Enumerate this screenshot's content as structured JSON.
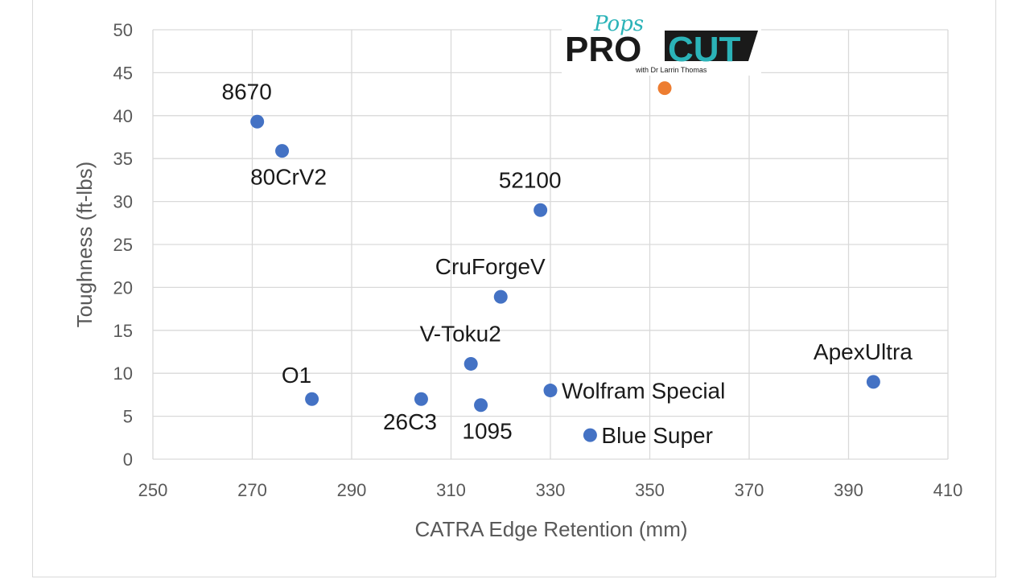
{
  "chart_data": {
    "type": "scatter",
    "title": "",
    "xlabel": "CATRA Edge Retention (mm)",
    "ylabel": "Toughness (ft-lbs)",
    "xlim": [
      250,
      410
    ],
    "ylim": [
      0,
      50
    ],
    "xticks": [
      250,
      270,
      290,
      310,
      330,
      350,
      370,
      390,
      410
    ],
    "yticks": [
      0,
      5,
      10,
      15,
      20,
      25,
      30,
      35,
      40,
      45,
      50
    ],
    "grid": true,
    "series": [
      {
        "color": "#4472c4",
        "points": [
          {
            "label": "8670",
            "x": 271,
            "y": 39.3,
            "label_pos": "above"
          },
          {
            "label": "80CrV2",
            "x": 276,
            "y": 35.9,
            "label_pos": "below"
          },
          {
            "label": "52100",
            "x": 328,
            "y": 29.0,
            "label_pos": "above"
          },
          {
            "label": "CruForgeV",
            "x": 320,
            "y": 18.9,
            "label_pos": "above"
          },
          {
            "label": "V-Toku2",
            "x": 314,
            "y": 11.1,
            "label_pos": "above"
          },
          {
            "label": "O1",
            "x": 282,
            "y": 7.0,
            "label_pos": "above-left"
          },
          {
            "label": "26C3",
            "x": 304,
            "y": 7.0,
            "label_pos": "below-left"
          },
          {
            "label": "1095",
            "x": 316,
            "y": 6.3,
            "label_pos": "below"
          },
          {
            "label": "Wolfram Special",
            "x": 330,
            "y": 8.0,
            "label_pos": "right"
          },
          {
            "label": "Blue Super",
            "x": 338,
            "y": 2.8,
            "label_pos": "right"
          },
          {
            "label": "ApexUltra",
            "x": 395,
            "y": 9.0,
            "label_pos": "above"
          }
        ]
      },
      {
        "color": "#ed7d31",
        "points": [
          {
            "label": "",
            "x": 353,
            "y": 43.2,
            "label_pos": "none"
          }
        ]
      }
    ]
  },
  "logo": {
    "script": "Pops",
    "main_left": "PRO",
    "main_right": "CUT",
    "tagline": "with Dr Larrin Thomas"
  }
}
